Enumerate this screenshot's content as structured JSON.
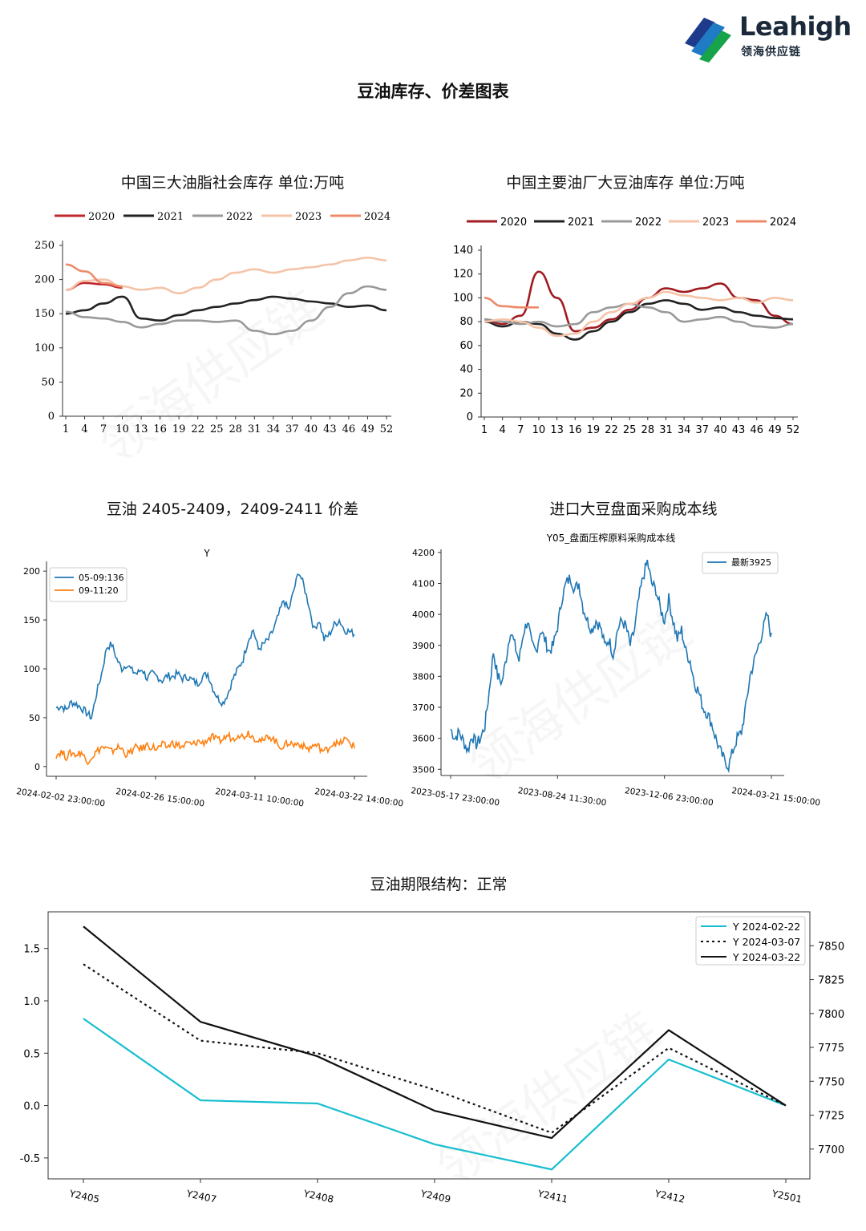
{
  "header": {
    "logo_text": "Leahigh",
    "logo_subtitle": "领海供应链",
    "logo_colors": [
      "#1f7bc4",
      "#16a34a",
      "#1e3a8a"
    ]
  },
  "page_title": "豆油库存、价差图表",
  "chart_data": [
    {
      "id": "three-oils",
      "type": "line",
      "title": "中国三大油脂社会库存 单位:万吨",
      "x_ticks": [
        1,
        4,
        7,
        10,
        13,
        16,
        19,
        22,
        25,
        28,
        31,
        34,
        37,
        40,
        43,
        46,
        49,
        52
      ],
      "ylim": [
        0,
        250
      ],
      "y_ticks": [
        0,
        50,
        100,
        150,
        200,
        250
      ],
      "legend_position": "top",
      "series": [
        {
          "name": "2020",
          "color": "#c0282d",
          "x": [
            1,
            4,
            7,
            10
          ],
          "values": [
            185,
            195,
            193,
            188
          ]
        },
        {
          "name": "2021",
          "color": "#222222",
          "x": [
            1,
            4,
            7,
            10,
            13,
            16,
            19,
            22,
            25,
            28,
            31,
            34,
            37,
            40,
            43,
            46,
            49,
            52
          ],
          "values": [
            150,
            155,
            165,
            175,
            143,
            140,
            148,
            155,
            160,
            165,
            170,
            175,
            172,
            168,
            165,
            160,
            162,
            155
          ]
        },
        {
          "name": "2022",
          "color": "#999999",
          "x": [
            1,
            4,
            7,
            10,
            13,
            16,
            19,
            22,
            25,
            28,
            31,
            34,
            37,
            40,
            43,
            46,
            49,
            52
          ],
          "values": [
            153,
            145,
            143,
            138,
            130,
            135,
            140,
            140,
            138,
            140,
            125,
            120,
            125,
            140,
            160,
            180,
            190,
            185
          ]
        },
        {
          "name": "2023",
          "color": "#f5c3a8",
          "x": [
            1,
            4,
            7,
            10,
            13,
            16,
            19,
            22,
            25,
            28,
            31,
            34,
            37,
            40,
            43,
            46,
            49,
            52
          ],
          "values": [
            185,
            198,
            200,
            190,
            185,
            188,
            180,
            188,
            200,
            210,
            215,
            210,
            215,
            218,
            222,
            228,
            232,
            228
          ]
        },
        {
          "name": "2024",
          "color": "#ec8a6a",
          "x": [
            1,
            4,
            7,
            10
          ],
          "values": [
            222,
            212,
            195,
            190
          ]
        }
      ]
    },
    {
      "id": "mill-soyoil",
      "type": "line",
      "title": "中国主要油厂大豆油库存 单位:万吨",
      "x_ticks": [
        1,
        4,
        7,
        10,
        13,
        16,
        19,
        22,
        25,
        28,
        31,
        34,
        37,
        40,
        43,
        46,
        49,
        52
      ],
      "ylim": [
        0,
        140
      ],
      "y_ticks": [
        0,
        20,
        40,
        60,
        80,
        100,
        120,
        140
      ],
      "legend_position": "top",
      "series": [
        {
          "name": "2020",
          "color": "#a01c22",
          "x": [
            1,
            4,
            7,
            10,
            13,
            16,
            19,
            22,
            25,
            28,
            31,
            34,
            37,
            40,
            43,
            46,
            49,
            52
          ],
          "values": [
            82,
            78,
            85,
            122,
            100,
            72,
            75,
            82,
            90,
            100,
            108,
            105,
            108,
            112,
            100,
            98,
            85,
            78
          ]
        },
        {
          "name": "2021",
          "color": "#222222",
          "x": [
            1,
            4,
            7,
            10,
            13,
            16,
            19,
            22,
            25,
            28,
            31,
            34,
            37,
            40,
            43,
            46,
            49,
            52
          ],
          "values": [
            80,
            76,
            80,
            78,
            70,
            65,
            72,
            80,
            88,
            95,
            98,
            95,
            90,
            92,
            88,
            85,
            83,
            82
          ]
        },
        {
          "name": "2022",
          "color": "#999999",
          "x": [
            1,
            4,
            7,
            10,
            13,
            16,
            19,
            22,
            25,
            28,
            31,
            34,
            37,
            40,
            43,
            46,
            49,
            52
          ],
          "values": [
            82,
            80,
            78,
            80,
            76,
            78,
            88,
            92,
            95,
            92,
            88,
            80,
            82,
            84,
            80,
            76,
            75,
            78
          ]
        },
        {
          "name": "2023",
          "color": "#f5c3a8",
          "x": [
            1,
            4,
            7,
            10,
            13,
            16,
            19,
            22,
            25,
            28,
            31,
            34,
            37,
            40,
            43,
            46,
            49,
            52
          ],
          "values": [
            80,
            82,
            80,
            75,
            68,
            70,
            80,
            88,
            95,
            100,
            105,
            102,
            100,
            98,
            100,
            96,
            100,
            98
          ]
        },
        {
          "name": "2024",
          "color": "#ec8a6a",
          "x": [
            1,
            4,
            7,
            10
          ],
          "values": [
            100,
            93,
            92,
            92
          ]
        }
      ]
    },
    {
      "id": "spread",
      "type": "line",
      "title": "豆油 2405-2409，2409-2411 价差",
      "subtitle": "Y",
      "x_tick_labels": [
        "2024-02-02 23:00:00",
        "2024-02-26 15:00:00",
        "2024-03-11 10:00:00",
        "2024-03-22 14:00:00"
      ],
      "ylim": [
        -10,
        210
      ],
      "y_ticks": [
        0,
        50,
        100,
        150,
        200
      ],
      "legend_position": "top-left",
      "series": [
        {
          "name": "05-09:136",
          "color": "#1f77b4",
          "values": [
            60,
            62,
            58,
            66,
            64,
            60,
            55,
            50,
            75,
            95,
            122,
            125,
            110,
            100,
            105,
            98,
            95,
            100,
            90,
            95,
            92,
            88,
            93,
            92,
            95,
            90,
            92,
            88,
            85,
            92,
            95,
            80,
            70,
            65,
            75,
            90,
            100,
            110,
            130,
            140,
            120,
            125,
            130,
            140,
            155,
            170,
            160,
            180,
            200,
            185,
            165,
            140,
            150,
            130,
            135,
            145,
            150,
            140,
            138,
            136
          ]
        },
        {
          "name": "09-11:20",
          "color": "#ff7f0e",
          "values": [
            12,
            15,
            10,
            14,
            12,
            15,
            5,
            10,
            15,
            20,
            18,
            15,
            20,
            18,
            12,
            16,
            20,
            18,
            22,
            20,
            18,
            22,
            20,
            24,
            22,
            20,
            24,
            22,
            26,
            24,
            28,
            30,
            26,
            28,
            32,
            28,
            34,
            30,
            35,
            30,
            28,
            25,
            32,
            28,
            22,
            20,
            25,
            22,
            24,
            20,
            18,
            22,
            20,
            15,
            20,
            25,
            22,
            28,
            25,
            20
          ]
        }
      ]
    },
    {
      "id": "import-cost",
      "type": "line",
      "title": "进口大豆盘面采购成本线",
      "subtitle": "Y05_盘面压榨原料采购成本线",
      "x_tick_labels": [
        "2023-05-17 23:00:00",
        "2023-08-24 11:30:00",
        "2023-12-06 23:00:00",
        "2024-03-21 15:00:00"
      ],
      "ylim": [
        3480,
        4210
      ],
      "y_ticks": [
        3500,
        3600,
        3700,
        3800,
        3900,
        4000,
        4100,
        4200
      ],
      "legend_position": "top-right",
      "series": [
        {
          "name": "最新3925",
          "color": "#1f77b4",
          "values": [
            3630,
            3600,
            3620,
            3590,
            3560,
            3610,
            3580,
            3600,
            3640,
            3750,
            3880,
            3800,
            3780,
            3860,
            3950,
            3900,
            3850,
            3940,
            3980,
            3900,
            3880,
            3950,
            3920,
            3880,
            3900,
            3960,
            4050,
            4100,
            4120,
            4080,
            4100,
            4020,
            3980,
            3950,
            3980,
            3960,
            3900,
            3920,
            3870,
            3950,
            3980,
            3960,
            3900,
            3950,
            4050,
            4120,
            4170,
            4100,
            4080,
            4020,
            3980,
            4050,
            3980,
            3920,
            3950,
            3880,
            3850,
            3780,
            3750,
            3700,
            3680,
            3650,
            3600,
            3560,
            3530,
            3510,
            3560,
            3600,
            3620,
            3700,
            3800,
            3850,
            3900,
            3950,
            4000,
            3925
          ]
        }
      ]
    },
    {
      "id": "term-structure",
      "type": "line",
      "title": "豆油期限结构：正常",
      "categories": [
        "Y2405",
        "Y2407",
        "Y2408",
        "Y2409",
        "Y2411",
        "Y2412",
        "Y2501"
      ],
      "left_ylim": [
        -0.7,
        1.85
      ],
      "left_y_ticks": [
        -0.5,
        0.0,
        0.5,
        1.0,
        1.5
      ],
      "left_tick_labels": [
        "-0.5",
        "0.0",
        "0.5",
        "1.0",
        "1.5"
      ],
      "right_ylim": [
        7678,
        7875
      ],
      "right_y_ticks": [
        7700,
        7725,
        7750,
        7775,
        7800,
        7825,
        7850
      ],
      "legend_position": "top-right",
      "series": [
        {
          "name": "Y 2024-02-22",
          "color": "#17becf",
          "dash": "",
          "values": [
            0.83,
            0.05,
            0.02,
            -0.37,
            -0.61,
            0.44,
            0.0
          ]
        },
        {
          "name": "Y 2024-03-07",
          "color": "#111111",
          "dash": "3,4",
          "values": [
            1.35,
            0.62,
            0.5,
            0.15,
            -0.26,
            0.55,
            0.0
          ]
        },
        {
          "name": "Y 2024-03-22",
          "color": "#111111",
          "dash": "",
          "values": [
            1.71,
            0.8,
            0.47,
            -0.05,
            -0.31,
            0.72,
            0.0
          ]
        }
      ]
    }
  ]
}
